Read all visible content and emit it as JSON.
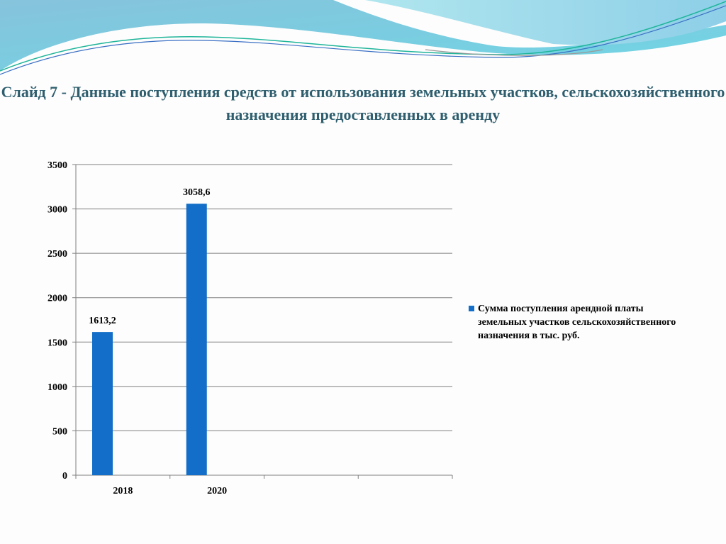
{
  "title": "Слайд 7 - Данные поступления средств от использования земельных участков, сельскохозяйственного назначения предоставленных в аренду",
  "colors": {
    "bar": "#126ec8",
    "title": "#2f5f6f",
    "grid": "#808080"
  },
  "chart_data": {
    "type": "bar",
    "categories": [
      "2018",
      "2020",
      "",
      ""
    ],
    "series": [
      {
        "name": "Сумма поступления  арендной платы  земельных участков сельскохозяйственного назначения в тыс. руб.",
        "values": [
          1613.2,
          3058.6,
          null,
          null
        ],
        "data_labels": [
          "1613,2",
          "3058,6",
          "",
          ""
        ]
      }
    ],
    "ylim": [
      0,
      3500
    ],
    "yticks": [
      "0",
      "500",
      "1000",
      "1500",
      "2000",
      "2500",
      "3000",
      "3500"
    ],
    "grid": true,
    "legend_position": "right"
  }
}
